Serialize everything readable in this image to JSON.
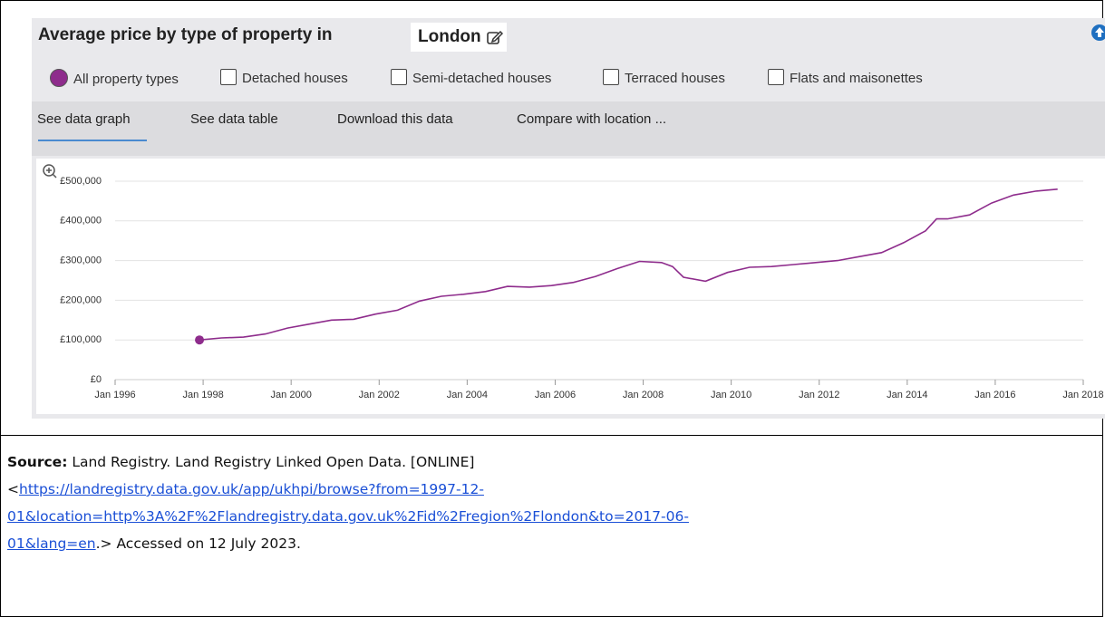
{
  "header": {
    "title": "Average price by type of property in",
    "location": "London"
  },
  "options": [
    "All property types",
    "Detached houses",
    "Semi-detached houses",
    "Terraced houses",
    "Flats and maisonettes"
  ],
  "tabs": [
    "See data graph",
    "See data table",
    "Download this data",
    "Compare with location ..."
  ],
  "chart_data": {
    "type": "line",
    "color": "#8e2c8c",
    "x": [
      "Dec 1997",
      "Jun 1998",
      "Dec 1998",
      "Jun 1999",
      "Dec 1999",
      "Jun 2000",
      "Dec 2000",
      "Jun 2001",
      "Dec 2001",
      "Jun 2002",
      "Dec 2002",
      "Jun 2003",
      "Dec 2003",
      "Jun 2004",
      "Dec 2004",
      "Jun 2005",
      "Dec 2005",
      "Jun 2006",
      "Dec 2006",
      "Jun 2007",
      "Dec 2007",
      "Jun 2008",
      "Sep 2008",
      "Dec 2008",
      "Jun 2009",
      "Dec 2009",
      "Jun 2010",
      "Dec 2010",
      "Jun 2011",
      "Dec 2011",
      "Jun 2012",
      "Dec 2012",
      "Jun 2013",
      "Dec 2013",
      "Jun 2014",
      "Sep 2014",
      "Dec 2014",
      "Jun 2015",
      "Dec 2015",
      "Jun 2016",
      "Dec 2016",
      "Jun 2017"
    ],
    "values": [
      100000,
      105000,
      107000,
      115000,
      130000,
      140000,
      150000,
      152000,
      165000,
      175000,
      198000,
      210000,
      215000,
      222000,
      235000,
      233000,
      237000,
      245000,
      260000,
      280000,
      298000,
      295000,
      285000,
      258000,
      248000,
      270000,
      283000,
      285000,
      290000,
      295000,
      300000,
      310000,
      320000,
      345000,
      375000,
      405000,
      405000,
      415000,
      445000,
      465000,
      475000,
      480000
    ],
    "xlim": [
      "Jan 1996",
      "Jan 2018"
    ],
    "xticks": [
      "Jan 1996",
      "Jan 1998",
      "Jan 2000",
      "Jan 2002",
      "Jan 2004",
      "Jan 2006",
      "Jan 2008",
      "Jan 2010",
      "Jan 2012",
      "Jan 2014",
      "Jan 2016",
      "Jan 2018"
    ],
    "ylim": [
      0,
      500000
    ],
    "yticks": [
      {
        "value": 0,
        "label": "£0"
      },
      {
        "value": 100000,
        "label": "£100,000"
      },
      {
        "value": 200000,
        "label": "£200,000"
      },
      {
        "value": 300000,
        "label": "£300,000"
      },
      {
        "value": 400000,
        "label": "£400,000"
      },
      {
        "value": 500000,
        "label": "£500,000"
      }
    ],
    "grid": true
  },
  "source": {
    "label": "Source:",
    "text": "Land Registry. Land Registry Linked Open Data. [ONLINE]",
    "open": "<",
    "link": "https://landregistry.data.gov.uk/app/ukhpi/browse?from=1997-12-01&location=http%3A%2F%2Flandregistry.data.gov.uk%2Fid%2Fregion%2Flondon&to=2017-06-01&lang=en",
    "after": ".> Accessed on 12 July 2023."
  }
}
